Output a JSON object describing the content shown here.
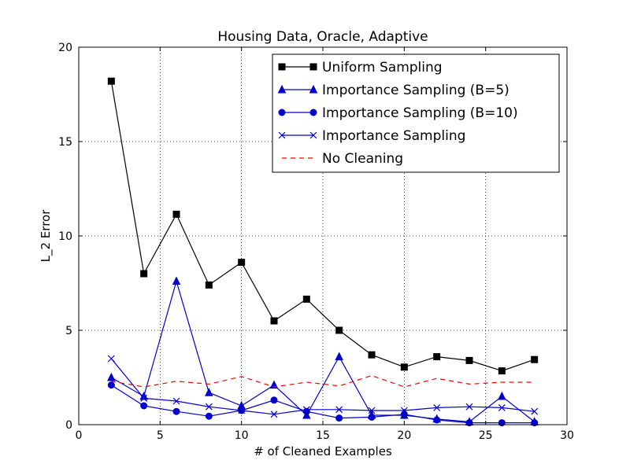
{
  "chart_data": {
    "type": "line",
    "title": "Housing Data, Oracle, Adaptive",
    "xlabel": "# of Cleaned Examples",
    "ylabel": "L_2 Error",
    "xlim": [
      0,
      30
    ],
    "ylim": [
      0,
      20
    ],
    "x_ticks": [
      0,
      5,
      10,
      15,
      20,
      25,
      30
    ],
    "y_ticks": [
      0,
      5,
      10,
      15,
      20
    ],
    "grid": true,
    "grid_style": "dotted",
    "legend_position": "top-right",
    "x": [
      2,
      4,
      6,
      8,
      10,
      12,
      14,
      16,
      18,
      20,
      22,
      24,
      26,
      28
    ],
    "series": [
      {
        "name": "Uniform Sampling",
        "color": "#000000",
        "marker": "square",
        "linestyle": "solid",
        "values": [
          18.2,
          8.0,
          11.15,
          7.4,
          8.6,
          5.5,
          6.65,
          5.0,
          3.7,
          3.05,
          3.6,
          3.4,
          2.85,
          3.45
        ]
      },
      {
        "name": "Importance Sampling (B=5)",
        "color": "#0000cc",
        "marker": "triangle",
        "linestyle": "solid",
        "values": [
          2.5,
          1.5,
          7.6,
          1.7,
          1.0,
          2.1,
          0.5,
          3.6,
          0.5,
          0.5,
          0.3,
          0.15,
          1.5,
          0.15
        ]
      },
      {
        "name": "Importance Sampling (B=10)",
        "color": "#0000cc",
        "marker": "circle",
        "linestyle": "solid",
        "values": [
          2.1,
          1.0,
          0.7,
          0.45,
          0.75,
          1.3,
          0.7,
          0.35,
          0.4,
          0.55,
          0.25,
          0.1,
          0.1,
          0.1
        ]
      },
      {
        "name": "Importance Sampling",
        "color": "#0000cc",
        "marker": "x",
        "linestyle": "solid",
        "values": [
          3.5,
          1.4,
          1.25,
          0.95,
          0.75,
          0.55,
          0.8,
          0.8,
          0.75,
          0.75,
          0.9,
          0.95,
          0.9,
          0.7
        ]
      },
      {
        "name": "No Cleaning",
        "color": "#ff0000",
        "marker": "none",
        "linestyle": "dashed",
        "values": [
          2.3,
          2.0,
          2.3,
          2.15,
          2.55,
          2.0,
          2.25,
          2.05,
          2.6,
          2.0,
          2.45,
          2.15,
          2.25,
          2.25
        ]
      }
    ]
  }
}
